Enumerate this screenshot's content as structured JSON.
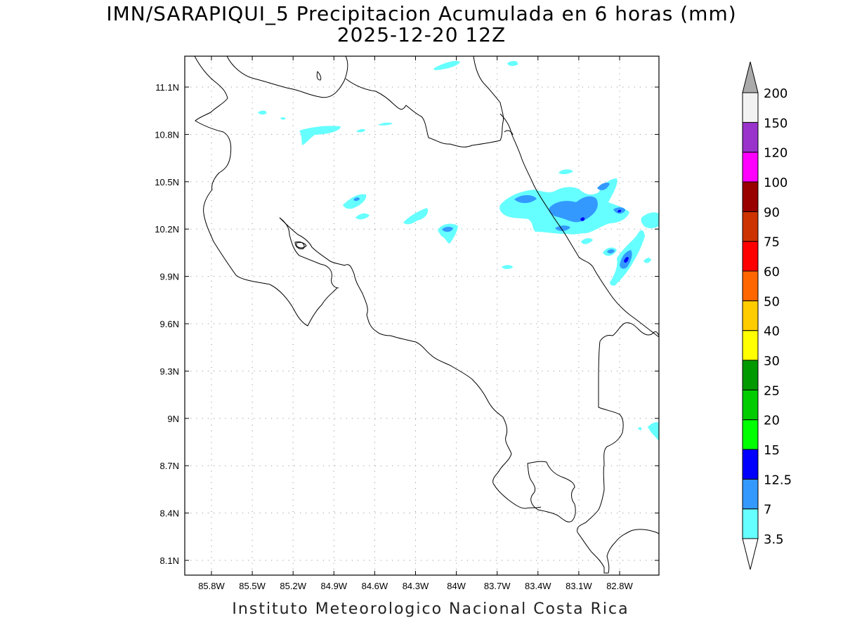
{
  "title": {
    "line1": "IMN/SARAPIQUI_5 Precipitacion Acumulada en 6 horas (mm)",
    "line2": "2025-12-20 12Z"
  },
  "footer": "Instituto Meteorologico Nacional Costa Rica",
  "map": {
    "lon_ticks": [
      "85.8W",
      "85.5W",
      "85.2W",
      "84.9W",
      "84.6W",
      "84.3W",
      "84W",
      "83.7W",
      "83.4W",
      "83.1W",
      "82.8W"
    ],
    "lat_ticks": [
      "11.1N",
      "10.8N",
      "10.5N",
      "10.2N",
      "9.9N",
      "9.6N",
      "9.3N",
      "9N",
      "8.7N",
      "8.4N",
      "8.1N"
    ]
  },
  "colorbar": {
    "levels": [
      "3.5",
      "7",
      "12.5",
      "15",
      "20",
      "25",
      "30",
      "40",
      "50",
      "60",
      "75",
      "90",
      "100",
      "120",
      "150",
      "200"
    ],
    "colors": [
      "#66ffff",
      "#3399ff",
      "#0000ff",
      "#00ff00",
      "#00cc00",
      "#009900",
      "#ffff00",
      "#ffcc00",
      "#ff6600",
      "#ff0000",
      "#cc3300",
      "#990000",
      "#ff00ff",
      "#9933cc",
      "#f2f2f2",
      "#aaaaaa"
    ]
  },
  "precip_colors": {
    "light": "#66ffff",
    "medium": "#3399ff",
    "heavy": "#0000ff"
  }
}
